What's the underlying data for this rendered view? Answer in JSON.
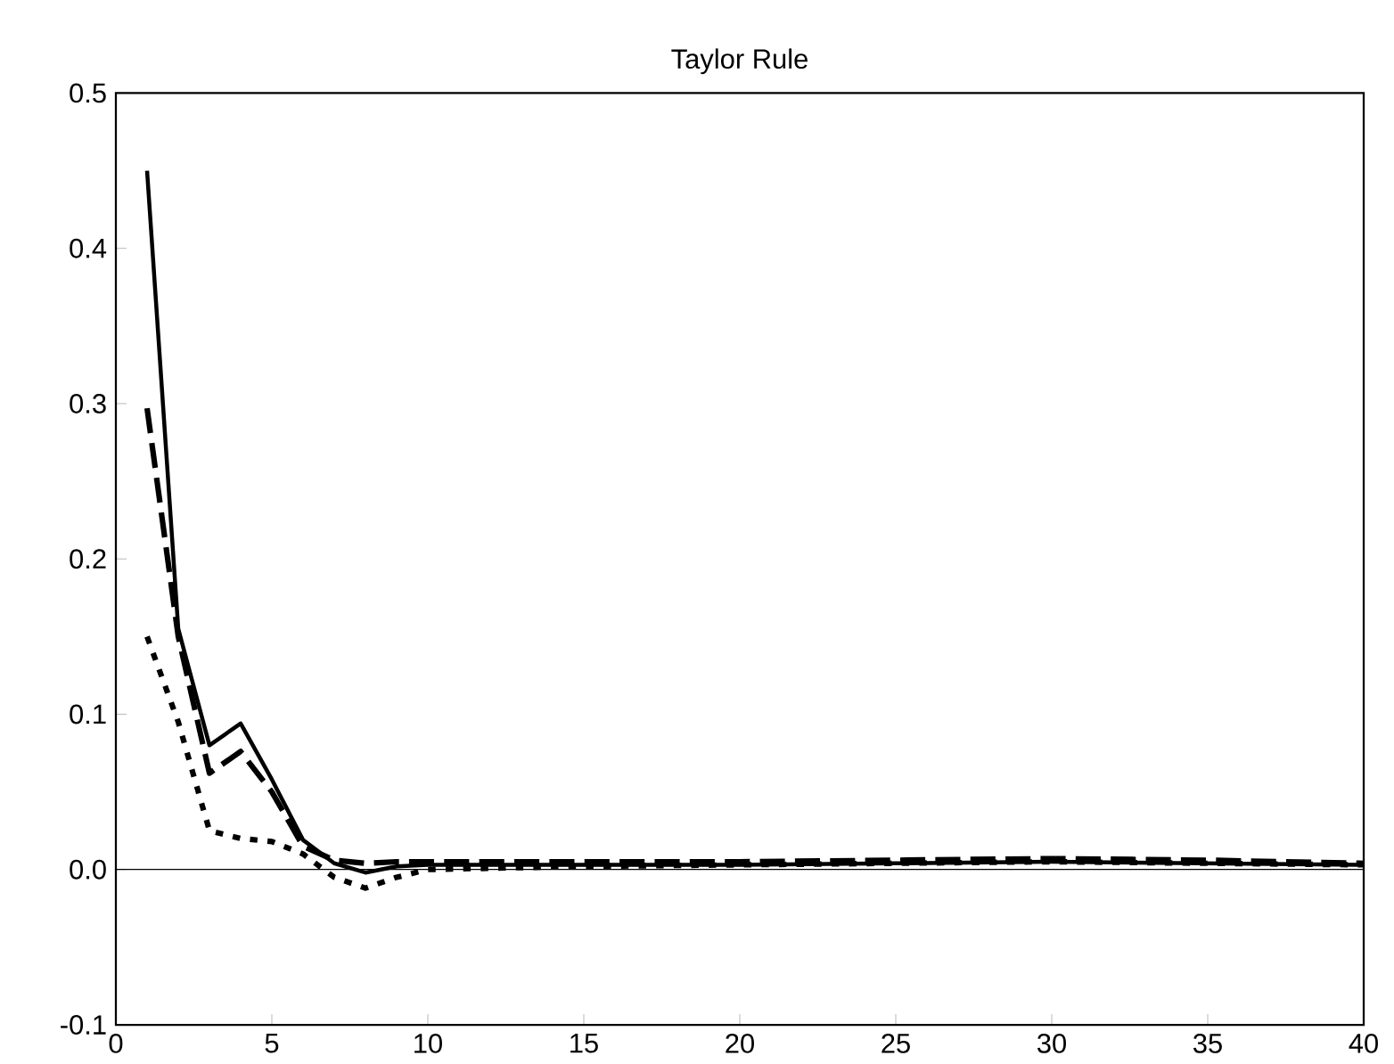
{
  "chart_data": {
    "type": "line",
    "title": "Taylor Rule",
    "xlim": [
      0,
      40
    ],
    "xticks": [
      0,
      5,
      10,
      15,
      20,
      25,
      30,
      35,
      40
    ],
    "ylim": [
      -0.1,
      0.5
    ],
    "yticks": [
      {
        "value": -0.1,
        "label": "-0.1"
      },
      {
        "value": 0,
        "label": "0.0"
      },
      {
        "value": 0.1,
        "label": "0.1"
      },
      {
        "value": 0.2,
        "label": "0.2"
      },
      {
        "value": 0.3,
        "label": "0.3"
      },
      {
        "value": 0.4,
        "label": "0.4"
      },
      {
        "value": 0.5,
        "label": "0.5"
      }
    ],
    "ref_lines": [
      {
        "axis": "y",
        "value": 0,
        "color": "#000000",
        "line_style": "solid"
      }
    ],
    "series": [
      {
        "color": "#000000",
        "line_style": "solid",
        "x": [
          1,
          2,
          3,
          4,
          5,
          6,
          7,
          8,
          9,
          10,
          15,
          20,
          25,
          30,
          35,
          40
        ],
        "values": [
          0.45,
          0.155,
          0.08,
          0.094,
          0.058,
          0.019,
          0.004,
          -0.002,
          0.002,
          0.003,
          0.003,
          0.003,
          0.004,
          0.005,
          0.004,
          0.003
        ]
      },
      {
        "color": "#000000",
        "line_style": "dashed",
        "x": [
          1,
          2,
          3,
          4,
          5,
          6,
          7,
          8,
          9,
          10,
          15,
          20,
          25,
          30,
          35,
          40
        ],
        "values": [
          0.297,
          0.15,
          0.062,
          0.076,
          0.05,
          0.015,
          0.006,
          0.004,
          0.005,
          0.005,
          0.005,
          0.005,
          0.006,
          0.007,
          0.006,
          0.004
        ]
      },
      {
        "color": "#000000",
        "line_style": "dotted",
        "x": [
          1,
          2,
          3,
          4,
          5,
          6,
          7,
          8,
          9,
          10,
          15,
          20,
          25,
          30,
          35,
          40
        ],
        "values": [
          0.15,
          0.095,
          0.025,
          0.02,
          0.018,
          0.01,
          -0.005,
          -0.012,
          -0.005,
          0.0,
          0.002,
          0.003,
          0.004,
          0.005,
          0.004,
          0.003
        ]
      }
    ]
  }
}
